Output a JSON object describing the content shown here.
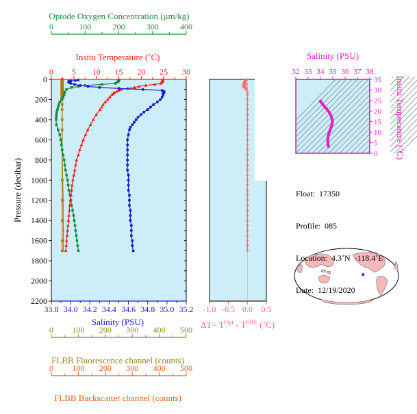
{
  "chart_data": {
    "type": "scatter",
    "colors": {
      "oxygen": "#1a8a3a",
      "temperature": "#ff1a1a",
      "salinity": "#1a1ad0",
      "fluorescence": "#8a8a1a",
      "backscatter": "#e0601a",
      "delta_t": "#ff6a6a",
      "panel_bg": "#cdeef8",
      "ts_color": "#e020c0"
    },
    "y_axis": {
      "label": "Pressure (decibar)",
      "lim": [
        0,
        2200
      ],
      "ticks": [
        "0",
        "200",
        "400",
        "600",
        "800",
        "1000",
        "1200",
        "1400",
        "1600",
        "1800",
        "2000",
        "2200"
      ]
    },
    "oxygen_axis": {
      "label": "Optode Oxygen Concentration (μm/kg)",
      "lim": [
        0,
        400
      ],
      "ticks": [
        "0",
        "100",
        "200",
        "300",
        "400"
      ]
    },
    "temperature_axis": {
      "label": "Insitu Temperature (˚C)",
      "lim": [
        0,
        30
      ],
      "ticks": [
        "0",
        "5",
        "10",
        "15",
        "20",
        "25",
        "30"
      ]
    },
    "salinity_axis": {
      "label": "Salinity (PSU)",
      "lim": [
        33.8,
        35.2
      ],
      "ticks": [
        "33.8",
        "34.0",
        "34.2",
        "34.4",
        "34.6",
        "34.8",
        "35.0",
        "35.2"
      ]
    },
    "fluorescence_axis": {
      "label": "FLBB Fluorescence channel (counts)",
      "lim": [
        0,
        500
      ],
      "ticks": [
        "0",
        "100",
        "200",
        "300",
        "400",
        "500"
      ]
    },
    "backscatter_axis": {
      "label": "FLBB Backscatter channel (counts)",
      "lim": [
        0,
        500
      ],
      "ticks": [
        "0",
        "100",
        "200",
        "300",
        "400",
        "500"
      ]
    },
    "delta_axis": {
      "label_parts": [
        "ΔT= T",
        "Opt",
        " - T",
        "SBE",
        " (˚C)"
      ],
      "lim": [
        -1.0,
        0.5
      ],
      "ticks": [
        "-1.0",
        "-0.5",
        "0.0",
        "0.5"
      ]
    },
    "series": [
      {
        "name": "Temperature",
        "pressure": [
          5,
          10,
          15,
          20,
          25,
          30,
          40,
          50,
          60,
          70,
          80,
          90,
          100,
          110,
          120,
          130,
          140,
          150,
          175,
          200,
          225,
          250,
          275,
          300,
          350,
          400,
          450,
          500,
          550,
          600,
          650,
          700,
          750,
          800,
          850,
          900,
          950,
          1000,
          1050,
          1100,
          1150,
          1200,
          1250,
          1300,
          1350,
          1400,
          1450,
          1500,
          1550,
          1600,
          1650,
          1700
        ],
        "values": [
          24.8,
          24.8,
          24.8,
          24.7,
          24.6,
          24.5,
          24.3,
          23.0,
          21.0,
          19.5,
          18.5,
          17.0,
          15.5,
          15.0,
          14.5,
          14.0,
          13.8,
          13.5,
          13.0,
          12.5,
          12.0,
          11.5,
          11.2,
          10.8,
          10.0,
          9.3,
          8.7,
          8.1,
          7.6,
          7.1,
          6.7,
          6.3,
          6.0,
          5.6,
          5.4,
          5.2,
          5.0,
          4.8,
          4.6,
          4.5,
          4.4,
          4.2,
          4.1,
          4.0,
          3.9,
          3.8,
          3.7,
          3.6,
          3.5,
          3.4,
          3.3,
          3.2
        ]
      },
      {
        "name": "Salinity",
        "pressure": [
          5,
          10,
          15,
          20,
          30,
          40,
          50,
          60,
          70,
          80,
          90,
          100,
          110,
          120,
          130,
          140,
          150,
          175,
          200,
          225,
          250,
          275,
          300,
          325,
          350,
          375,
          400,
          425,
          450,
          475,
          500,
          550,
          600,
          650,
          700,
          750,
          800,
          850,
          900,
          950,
          1000,
          1050,
          1100,
          1150,
          1200,
          1250,
          1300,
          1350,
          1400,
          1450,
          1500,
          1550,
          1600,
          1650,
          1700
        ],
        "values": [
          34.08,
          34.05,
          34.0,
          33.98,
          33.98,
          34.0,
          34.04,
          34.1,
          34.18,
          34.3,
          34.5,
          34.75,
          34.95,
          34.97,
          34.97,
          34.96,
          34.96,
          34.95,
          34.93,
          34.9,
          34.86,
          34.83,
          34.8,
          34.76,
          34.73,
          34.7,
          34.68,
          34.66,
          34.64,
          34.62,
          34.61,
          34.6,
          34.59,
          34.59,
          34.59,
          34.59,
          34.59,
          34.59,
          34.59,
          34.6,
          34.6,
          34.6,
          34.6,
          34.61,
          34.61,
          34.61,
          34.62,
          34.62,
          34.62,
          34.63,
          34.63,
          34.63,
          34.64,
          34.64,
          34.65
        ]
      },
      {
        "name": "Oxygen",
        "pressure": [
          5,
          10,
          15,
          20,
          30,
          40,
          50,
          60,
          70,
          80,
          100,
          125,
          150,
          175,
          200,
          225,
          250,
          275,
          300,
          325,
          350,
          375,
          400,
          450,
          500,
          550,
          600,
          650,
          700,
          750,
          800,
          850,
          900,
          950,
          1000,
          1050,
          1100,
          1150,
          1200,
          1250,
          1300,
          1350,
          1400,
          1450,
          1500,
          1550,
          1600,
          1650,
          1700
        ],
        "values": [
          200,
          200,
          200,
          198,
          195,
          190,
          150,
          100,
          80,
          60,
          45,
          40,
          38,
          35,
          30,
          25,
          22,
          20,
          18,
          16,
          15,
          15,
          14,
          15,
          20,
          25,
          28,
          30,
          32,
          35,
          38,
          40,
          42,
          45,
          48,
          50,
          52,
          55,
          58,
          60,
          63,
          66,
          68,
          70,
          72,
          74,
          76,
          78,
          80
        ]
      },
      {
        "name": "Fluorescence",
        "pressure": [
          0,
          20,
          40,
          60,
          80,
          100,
          125,
          150,
          200,
          300,
          400,
          500,
          700,
          1000,
          1200,
          1400,
          1500,
          1600,
          1700
        ],
        "values": [
          40,
          42,
          42,
          42,
          42,
          42,
          42,
          40,
          40,
          40,
          40,
          40,
          40,
          42,
          44,
          44,
          45,
          44,
          44
        ]
      },
      {
        "name": "Backscatter",
        "pressure": [
          0,
          20,
          40,
          60,
          80,
          100,
          125,
          150,
          175,
          200,
          250,
          300,
          400,
          500,
          700,
          1000,
          1200,
          1400,
          1600,
          1700
        ],
        "values": [
          40,
          40,
          40,
          40,
          40,
          40,
          40,
          40,
          40,
          40,
          40,
          40,
          40,
          40,
          40,
          40,
          40,
          40,
          40,
          40
        ]
      },
      {
        "name": "DeltaT",
        "pressure": [
          0,
          10,
          20,
          30,
          40,
          50,
          60,
          70,
          80,
          90,
          100,
          125,
          150,
          200,
          250,
          300,
          350,
          400,
          450,
          500,
          550,
          600,
          650,
          700,
          750,
          800,
          850,
          900,
          950,
          1000,
          1050,
          1100,
          1150,
          1200,
          1250,
          1300,
          1350,
          1400,
          1450,
          1500,
          1550,
          1600,
          1650,
          1700
        ],
        "values": [
          0.0,
          -0.05,
          -0.08,
          -0.05,
          -0.1,
          -0.03,
          -0.12,
          -0.06,
          -0.1,
          -0.02,
          -0.04,
          0.0,
          0.0,
          0.0,
          0.0,
          0.0,
          0.0,
          0.0,
          0.0,
          0.0,
          0.0,
          0.0,
          0.0,
          0.0,
          0.0,
          0.0,
          0.0,
          0.0,
          0.0,
          0.0,
          0.0,
          0.0,
          0.0,
          0.0,
          0.0,
          0.0,
          0.0,
          0.0,
          0.0,
          0.0,
          0.0,
          0.0,
          0.0,
          0.0
        ]
      }
    ],
    "ts_inset": {
      "x_label": "Salinity (PSU)",
      "x_lim": [
        32,
        38
      ],
      "x_ticks": [
        "32",
        "33",
        "34",
        "35",
        "36",
        "37",
        "38"
      ],
      "y_label": "Insitu Temperature (˚C)",
      "y_lim": [
        0,
        35
      ],
      "y_ticks": [
        "0",
        "5",
        "10",
        "15",
        "20",
        "25",
        "30",
        "35"
      ],
      "salinity": [
        34.0,
        34.0,
        34.08,
        34.2,
        34.5,
        34.7,
        34.85,
        34.95,
        34.97,
        34.95,
        34.9,
        34.82,
        34.72,
        34.64,
        34.6,
        34.59,
        34.6,
        34.62,
        34.65
      ],
      "temperature": [
        24.8,
        24.5,
        24.0,
        23.0,
        21.0,
        19.5,
        18.0,
        16.0,
        15.0,
        14.0,
        13.0,
        11.5,
        10.0,
        8.5,
        7.0,
        5.8,
        5.0,
        4.2,
        3.2
      ]
    },
    "map": {
      "marker_lat": 4.3,
      "marker_lon": -118.4
    }
  },
  "info": {
    "float": "Float:  17350",
    "profile": "Profile:  085",
    "location": "Location:  4.3˚N  -118.4˚E",
    "date": "Date:  12/19/2020"
  }
}
